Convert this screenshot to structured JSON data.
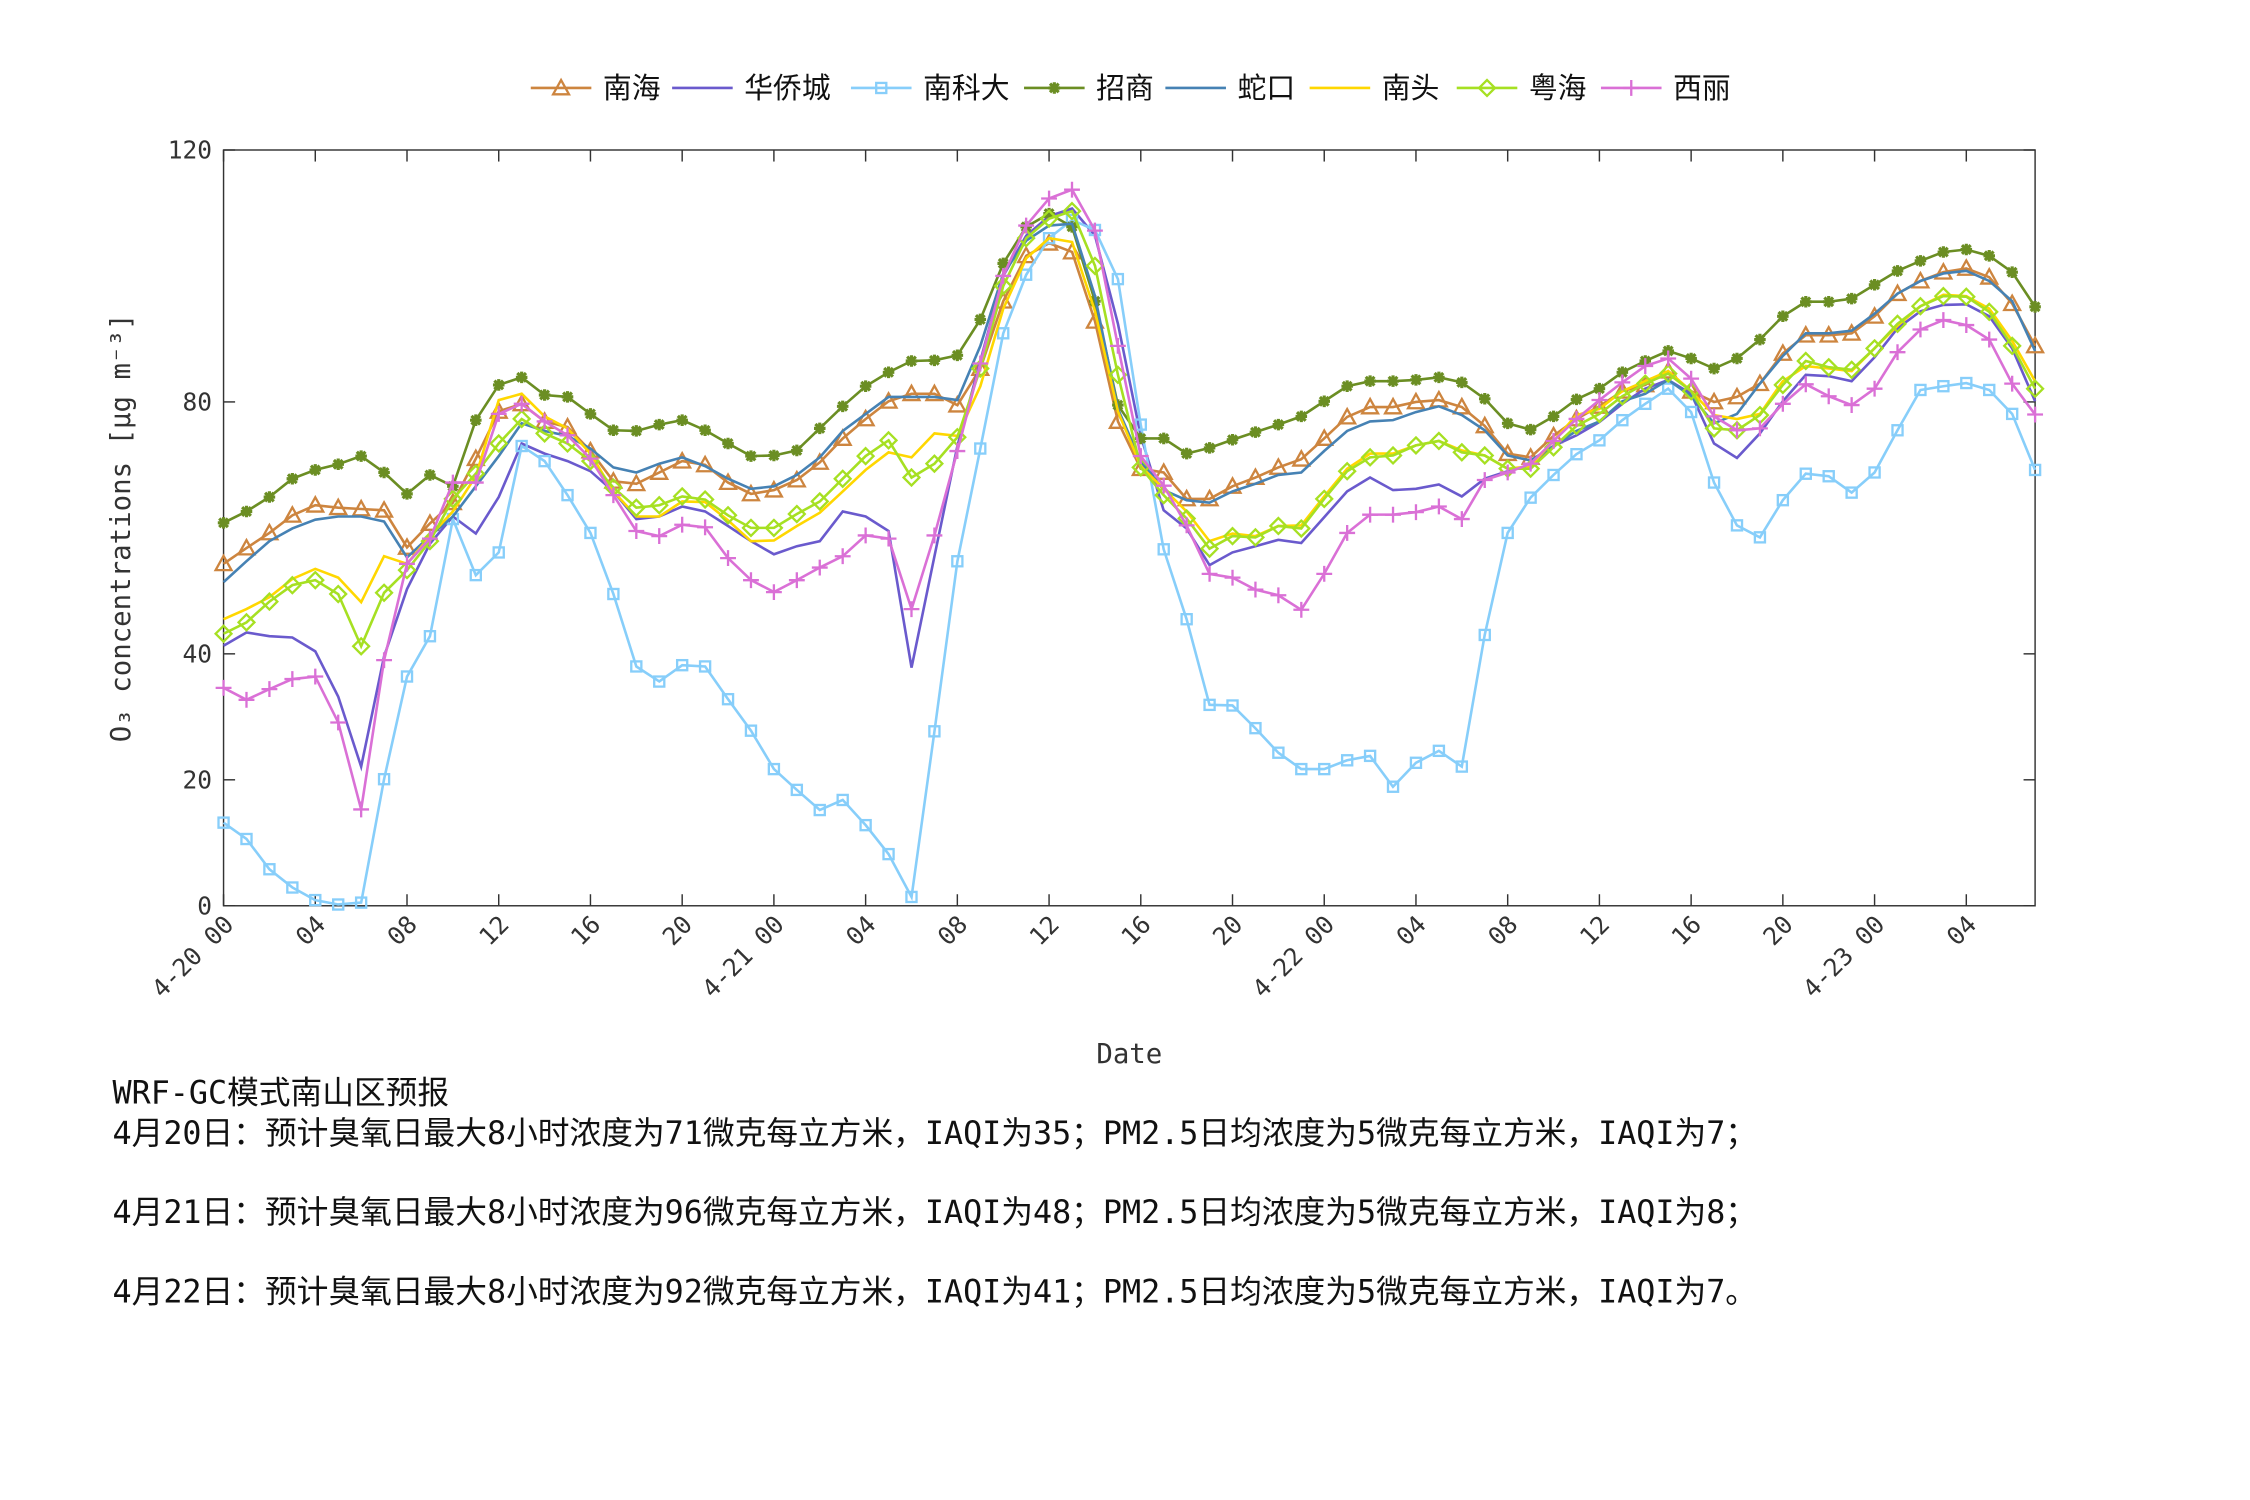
{
  "chart_data": {
    "type": "line",
    "xlabel": "Date",
    "ylabel": "O₃ concentrations [μg m⁻³]",
    "ylim": [
      0,
      120
    ],
    "y_ticks": [
      0,
      20,
      40,
      80,
      120
    ],
    "x_hours_start": "4-20 00",
    "x_step": "1 hour",
    "x_tick_labels": [
      "4-20 00",
      "04",
      "08",
      "12",
      "16",
      "20",
      "4-21 00",
      "04",
      "08",
      "12",
      "16",
      "20",
      "4-22 00",
      "04",
      "08",
      "12",
      "16",
      "20",
      "4-23 00",
      "04"
    ],
    "legend_position": "top",
    "grid": false,
    "series": [
      {
        "name": "南海",
        "color": "#CD853F",
        "marker": "triangle",
        "values": [
          54.3,
          56.8,
          59.2,
          62.0,
          63.6,
          63.2,
          63.0,
          62.8,
          56.9,
          60.7,
          64.0,
          71.0,
          78.5,
          79.7,
          76.9,
          76.0,
          72.2,
          67.4,
          67.0,
          68.8,
          70.6,
          70.0,
          67.2,
          65.4,
          66.0,
          67.6,
          70.4,
          74.2,
          77.3,
          80.1,
          81.3,
          81.3,
          79.5,
          85.3,
          96.0,
          103.2,
          105.2,
          103.8,
          92.8,
          76.9,
          69.4,
          68.8,
          64.6,
          64.6,
          66.6,
          68.0,
          69.6,
          70.9,
          74.2,
          77.6,
          79.2,
          79.2,
          80.0,
          80.3,
          79.2,
          76.2,
          71.8,
          71.2,
          74.6,
          77.3,
          79.3,
          81.7,
          82.7,
          84.9,
          81.7,
          80.0,
          80.8,
          82.9,
          87.7,
          90.6,
          90.6,
          90.9,
          93.6,
          97.2,
          99.2,
          100.6,
          101.2,
          99.8,
          95.6,
          88.9
        ]
      },
      {
        "name": "华侨城",
        "color": "#6A5ACD",
        "marker": "none",
        "values": [
          41.3,
          43.4,
          42.8,
          42.6,
          40.4,
          33.2,
          22.1,
          39.6,
          50.3,
          57.5,
          61.8,
          59.1,
          64.9,
          73.4,
          71.8,
          70.6,
          69.0,
          65.8,
          61.4,
          61.8,
          63.4,
          62.6,
          60.3,
          57.9,
          55.8,
          57.1,
          57.9,
          62.6,
          61.8,
          59.5,
          37.8,
          55.5,
          73.0,
          86.5,
          100.0,
          106.4,
          109.5,
          110.7,
          106.4,
          92.4,
          74.6,
          62.8,
          59.9,
          54.1,
          56.1,
          57.1,
          58.1,
          57.6,
          61.7,
          65.8,
          68.0,
          66.0,
          66.2,
          66.9,
          65.0,
          67.8,
          69.0,
          70.0,
          73.0,
          74.7,
          76.8,
          79.7,
          82.1,
          83.5,
          81.3,
          73.4,
          71.1,
          75.0,
          80.1,
          84.3,
          84.1,
          83.3,
          87.1,
          91.7,
          94.4,
          95.4,
          95.5,
          93.6,
          88.5,
          80.1
        ]
      },
      {
        "name": "南科大",
        "color": "#87CEFA",
        "marker": "square",
        "values": [
          13.2,
          10.6,
          5.8,
          2.9,
          0.9,
          0.2,
          0.5,
          20.1,
          36.4,
          42.8,
          61.4,
          52.5,
          56.1,
          73.0,
          70.6,
          65.2,
          59.2,
          49.5,
          38.0,
          35.6,
          38.2,
          38.0,
          32.8,
          27.8,
          21.7,
          18.4,
          15.2,
          16.8,
          12.8,
          8.2,
          1.4,
          27.7,
          54.7,
          72.6,
          90.9,
          100.2,
          106.0,
          108.9,
          107.3,
          99.5,
          76.4,
          56.6,
          45.5,
          31.9,
          31.8,
          28.2,
          24.3,
          21.7,
          21.7,
          23.1,
          23.8,
          18.9,
          22.7,
          24.6,
          22.1,
          43.0,
          59.2,
          64.8,
          68.4,
          71.7,
          73.9,
          77.1,
          79.7,
          82.1,
          78.4,
          67.2,
          60.4,
          58.5,
          64.4,
          68.6,
          68.2,
          65.6,
          68.8,
          75.5,
          81.9,
          82.5,
          83.0,
          81.9,
          78.1,
          69.2
        ]
      },
      {
        "name": "招商",
        "color": "#6B8E23",
        "marker": "star",
        "values": [
          60.8,
          62.6,
          64.9,
          67.8,
          69.2,
          70.1,
          71.4,
          68.8,
          65.4,
          68.4,
          66.6,
          77.1,
          82.7,
          83.9,
          81.1,
          80.8,
          78.1,
          75.5,
          75.4,
          76.4,
          77.1,
          75.5,
          73.4,
          71.4,
          71.5,
          72.3,
          75.8,
          79.3,
          82.5,
          84.7,
          86.5,
          86.6,
          87.4,
          93.1,
          102.0,
          107.8,
          109.9,
          107.8,
          96.0,
          79.5,
          74.2,
          74.2,
          71.8,
          72.7,
          74.0,
          75.2,
          76.4,
          77.7,
          80.1,
          82.5,
          83.3,
          83.3,
          83.5,
          83.9,
          83.1,
          80.5,
          76.6,
          75.6,
          77.7,
          80.4,
          82.1,
          84.7,
          86.5,
          88.1,
          86.9,
          85.3,
          86.9,
          89.9,
          93.6,
          95.9,
          95.9,
          96.4,
          98.6,
          100.8,
          102.4,
          103.8,
          104.2,
          103.2,
          100.6,
          95.1
        ]
      },
      {
        "name": "蛇口",
        "color": "#4682B4",
        "marker": "none",
        "values": [
          51.4,
          54.7,
          57.9,
          59.9,
          61.3,
          61.8,
          61.8,
          61.0,
          55.3,
          58.7,
          61.8,
          66.6,
          71.4,
          76.6,
          75.4,
          74.6,
          72.6,
          69.6,
          68.8,
          70.2,
          71.2,
          69.8,
          67.8,
          66.2,
          66.6,
          68.4,
          71.2,
          75.4,
          78.1,
          80.8,
          80.8,
          80.8,
          80.3,
          88.9,
          100.4,
          105.6,
          108.0,
          108.3,
          96.8,
          78.9,
          70.6,
          66.0,
          64.4,
          64.0,
          65.8,
          67.0,
          68.4,
          68.8,
          72.2,
          75.4,
          76.9,
          77.1,
          78.4,
          79.3,
          77.9,
          75.5,
          71.5,
          70.7,
          73.0,
          75.4,
          76.9,
          80.1,
          81.3,
          83.5,
          80.9,
          76.6,
          78.1,
          82.9,
          87.3,
          90.9,
          90.9,
          91.3,
          94.0,
          97.2,
          99.2,
          100.4,
          100.8,
          99.2,
          96.0,
          88.1
        ]
      },
      {
        "name": "南头",
        "color": "#FFD700",
        "marker": "none",
        "values": [
          45.5,
          47.1,
          49.0,
          51.9,
          53.5,
          52.1,
          48.2,
          55.5,
          54.3,
          58.7,
          62.6,
          68.2,
          80.3,
          81.3,
          77.7,
          75.8,
          71.8,
          65.8,
          61.8,
          61.8,
          64.2,
          64.1,
          61.2,
          57.9,
          58.0,
          60.3,
          62.4,
          65.8,
          69.2,
          72.0,
          71.2,
          75.0,
          74.6,
          82.5,
          94.8,
          102.8,
          106.0,
          105.4,
          94.4,
          78.5,
          69.8,
          66.2,
          62.6,
          57.9,
          59.1,
          58.7,
          60.3,
          60.4,
          65.0,
          69.4,
          71.8,
          71.8,
          73.1,
          73.8,
          72.3,
          71.5,
          69.4,
          69.8,
          73.8,
          77.9,
          78.9,
          81.7,
          83.3,
          84.9,
          81.7,
          77.9,
          77.3,
          78.1,
          83.3,
          85.7,
          85.3,
          84.9,
          88.5,
          92.1,
          95.2,
          97.0,
          96.8,
          94.8,
          89.7,
          83.3
        ]
      },
      {
        "name": "粤海",
        "color": "#A6E022",
        "marker": "diamond",
        "values": [
          43.2,
          45.0,
          48.3,
          50.9,
          51.7,
          49.5,
          41.2,
          49.7,
          53.3,
          57.9,
          64.6,
          68.6,
          73.4,
          77.3,
          75.0,
          73.4,
          70.6,
          66.4,
          63.2,
          63.6,
          65.0,
          64.5,
          62.0,
          60.0,
          60.0,
          62.2,
          64.2,
          67.8,
          71.4,
          73.9,
          68.0,
          70.2,
          74.4,
          85.3,
          98.4,
          106.0,
          109.1,
          110.3,
          101.6,
          84.3,
          69.6,
          65.2,
          61.5,
          56.7,
          58.7,
          58.5,
          60.3,
          59.9,
          64.6,
          69.0,
          71.2,
          71.5,
          73.1,
          73.8,
          72.0,
          71.5,
          69.4,
          69.4,
          72.8,
          76.2,
          78.1,
          80.9,
          82.9,
          84.5,
          81.7,
          75.8,
          75.5,
          77.9,
          82.7,
          86.5,
          85.5,
          85.1,
          88.5,
          92.4,
          95.2,
          96.8,
          96.7,
          94.3,
          88.9,
          82.1
        ]
      },
      {
        "name": "西丽",
        "color": "#DA70D6",
        "marker": "plus",
        "values": [
          34.6,
          32.7,
          34.4,
          36.0,
          36.4,
          29.1,
          15.3,
          39.0,
          54.3,
          58.3,
          67.2,
          67.2,
          78.1,
          79.7,
          76.9,
          74.7,
          71.0,
          65.2,
          59.5,
          58.7,
          60.5,
          60.1,
          55.2,
          51.7,
          49.8,
          51.7,
          53.7,
          55.5,
          58.8,
          58.3,
          47.1,
          58.8,
          72.2,
          86.1,
          100.0,
          108.0,
          112.3,
          113.7,
          107.2,
          88.9,
          71.4,
          66.7,
          60.4,
          52.7,
          52.1,
          50.2,
          49.3,
          47.0,
          52.7,
          59.2,
          62.1,
          62.1,
          62.5,
          63.4,
          61.4,
          67.6,
          68.8,
          70.2,
          73.8,
          77.3,
          80.3,
          83.1,
          85.7,
          86.9,
          83.7,
          77.7,
          75.5,
          75.8,
          79.7,
          82.8,
          80.9,
          79.5,
          82.1,
          87.9,
          91.5,
          93.0,
          92.2,
          89.9,
          82.9,
          78.0
        ]
      }
    ]
  },
  "notes": {
    "title": "WRF-GC模式南山区预报",
    "lines": [
      "4月20日：预计臭氧日最大8小时浓度为71微克每立方米，IAQI为35；PM2.5日均浓度为5微克每立方米，IAQI为7；",
      "4月21日：预计臭氧日最大8小时浓度为96微克每立方米，IAQI为48；PM2.5日均浓度为5微克每立方米，IAQI为8；",
      "4月22日：预计臭氧日最大8小时浓度为92微克每立方米，IAQI为41；PM2.5日均浓度为5微克每立方米，IAQI为7。"
    ]
  }
}
